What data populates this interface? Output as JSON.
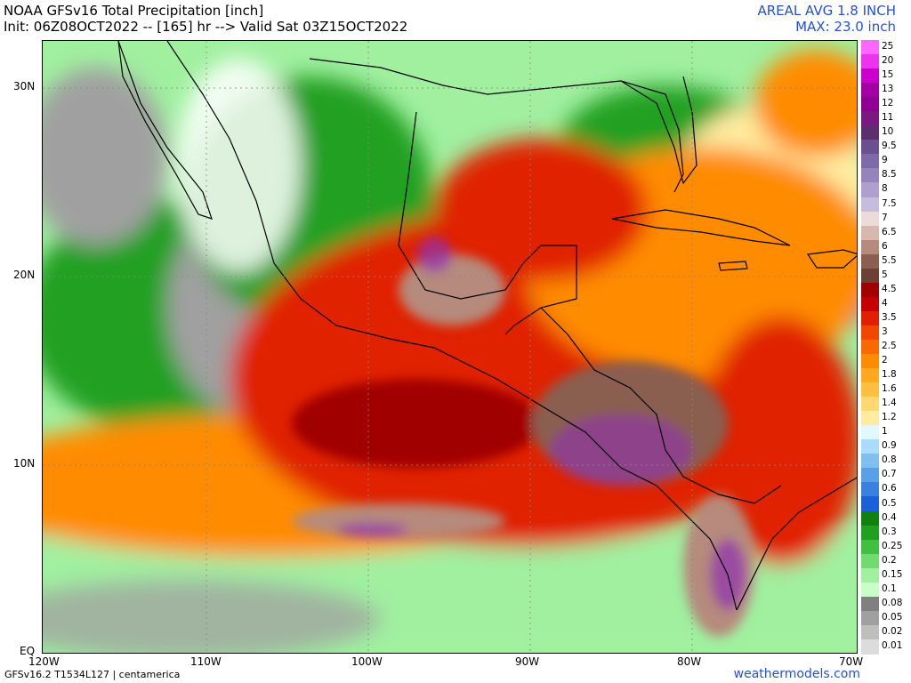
{
  "header": {
    "title": "NOAA GFSv16 Total Precipitation [inch]",
    "init_line": "Init: 06Z08OCT2022 -- [165] hr --> Valid Sat 03Z15OCT2022",
    "areal_avg": "AREAL AVG 1.8 INCH",
    "max": "MAX: 23.0 inch"
  },
  "axes": {
    "lat_labels": [
      "30N",
      "20N",
      "10N",
      "EQ"
    ],
    "lon_labels": [
      "120W",
      "110W",
      "100W",
      "90W",
      "80W",
      "70W"
    ]
  },
  "colorbar": {
    "labels": [
      "25",
      "20",
      "15",
      "13",
      "12",
      "11",
      "10",
      "9.5",
      "9",
      "8.5",
      "8",
      "7.5",
      "7",
      "6.5",
      "6",
      "5.5",
      "5",
      "4.5",
      "4",
      "3.5",
      "3",
      "2.5",
      "2",
      "1.8",
      "1.6",
      "1.4",
      "1.2",
      "1",
      "0.9",
      "0.8",
      "0.7",
      "0.6",
      "0.5",
      "0.4",
      "0.3",
      "0.25",
      "0.2",
      "0.15",
      "0.1",
      "0.08",
      "0.05",
      "0.02",
      "0.01"
    ],
    "colors": [
      "#ff66ff",
      "#ee33ee",
      "#cc00cc",
      "#a300a3",
      "#8f0090",
      "#7a1a80",
      "#5a2f6c",
      "#6a5090",
      "#7e6aa8",
      "#9584bc",
      "#ada0cc",
      "#c6bcdc",
      "#eadcd8",
      "#d8b8ac",
      "#b68a7c",
      "#8a5e50",
      "#6e4034",
      "#a00000",
      "#c40000",
      "#e02000",
      "#f04800",
      "#f86a00",
      "#ff8c00",
      "#ffa820",
      "#ffc040",
      "#ffd870",
      "#ffeca0",
      "#e0f8ff",
      "#aadcff",
      "#80c0f0",
      "#5aa0e8",
      "#3a80e0",
      "#1a60d8",
      "#108010",
      "#20a020",
      "#40c040",
      "#70dc70",
      "#a0f0a0",
      "#c8ffc8",
      "#808080",
      "#a0a0a0",
      "#bebebe",
      "#dcdcdc"
    ],
    "palette": {
      "red": "#e02000",
      "orange": "#ff8c00",
      "dark_red": "#a00000",
      "brown": "#8a5e50",
      "mauve": "#b68a7c",
      "purple": "#9030b0",
      "green": "#20a020",
      "light_green": "#a0f0a0",
      "blue": "#1a60d8",
      "gray": "#a0a0a0",
      "yellow": "#ffeca0"
    }
  },
  "footer": {
    "model_info": "GFSv16.2 T1534L127 | centamerica",
    "site": "weathermodels.com"
  }
}
